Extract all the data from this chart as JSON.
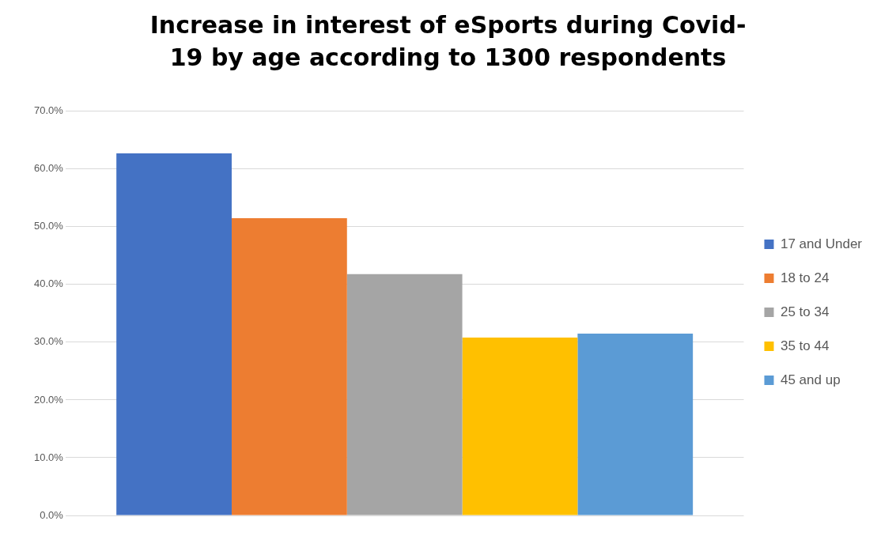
{
  "chart_data": {
    "type": "bar",
    "title": "Increase in interest of eSports during Covid-19 by age according to 1300 respondents",
    "categories": [
      null
    ],
    "series": [
      {
        "name": "17 and Under",
        "color": "#4472c4",
        "values": [
          62.7
        ]
      },
      {
        "name": "18 to 24",
        "color": "#ed7d31",
        "values": [
          51.5
        ]
      },
      {
        "name": "25 to 34",
        "color": "#a5a5a5",
        "values": [
          41.8
        ]
      },
      {
        "name": "35 to 44",
        "color": "#ffc000",
        "values": [
          30.8
        ]
      },
      {
        "name": "45 and up",
        "color": "#5b9bd5",
        "values": [
          31.5
        ]
      }
    ],
    "ylim": [
      0,
      70
    ],
    "yticks": [
      {
        "value": 0,
        "label": "0.0%"
      },
      {
        "value": 10,
        "label": "10.0%"
      },
      {
        "value": 20,
        "label": "20.0%"
      },
      {
        "value": 30,
        "label": "30.0%"
      },
      {
        "value": 40,
        "label": "40.0%"
      },
      {
        "value": 50,
        "label": "50.0%"
      },
      {
        "value": 60,
        "label": "60.0%"
      },
      {
        "value": 70,
        "label": "70.0%"
      }
    ],
    "grid": "y",
    "legend": "right",
    "tick_labels": "y"
  }
}
